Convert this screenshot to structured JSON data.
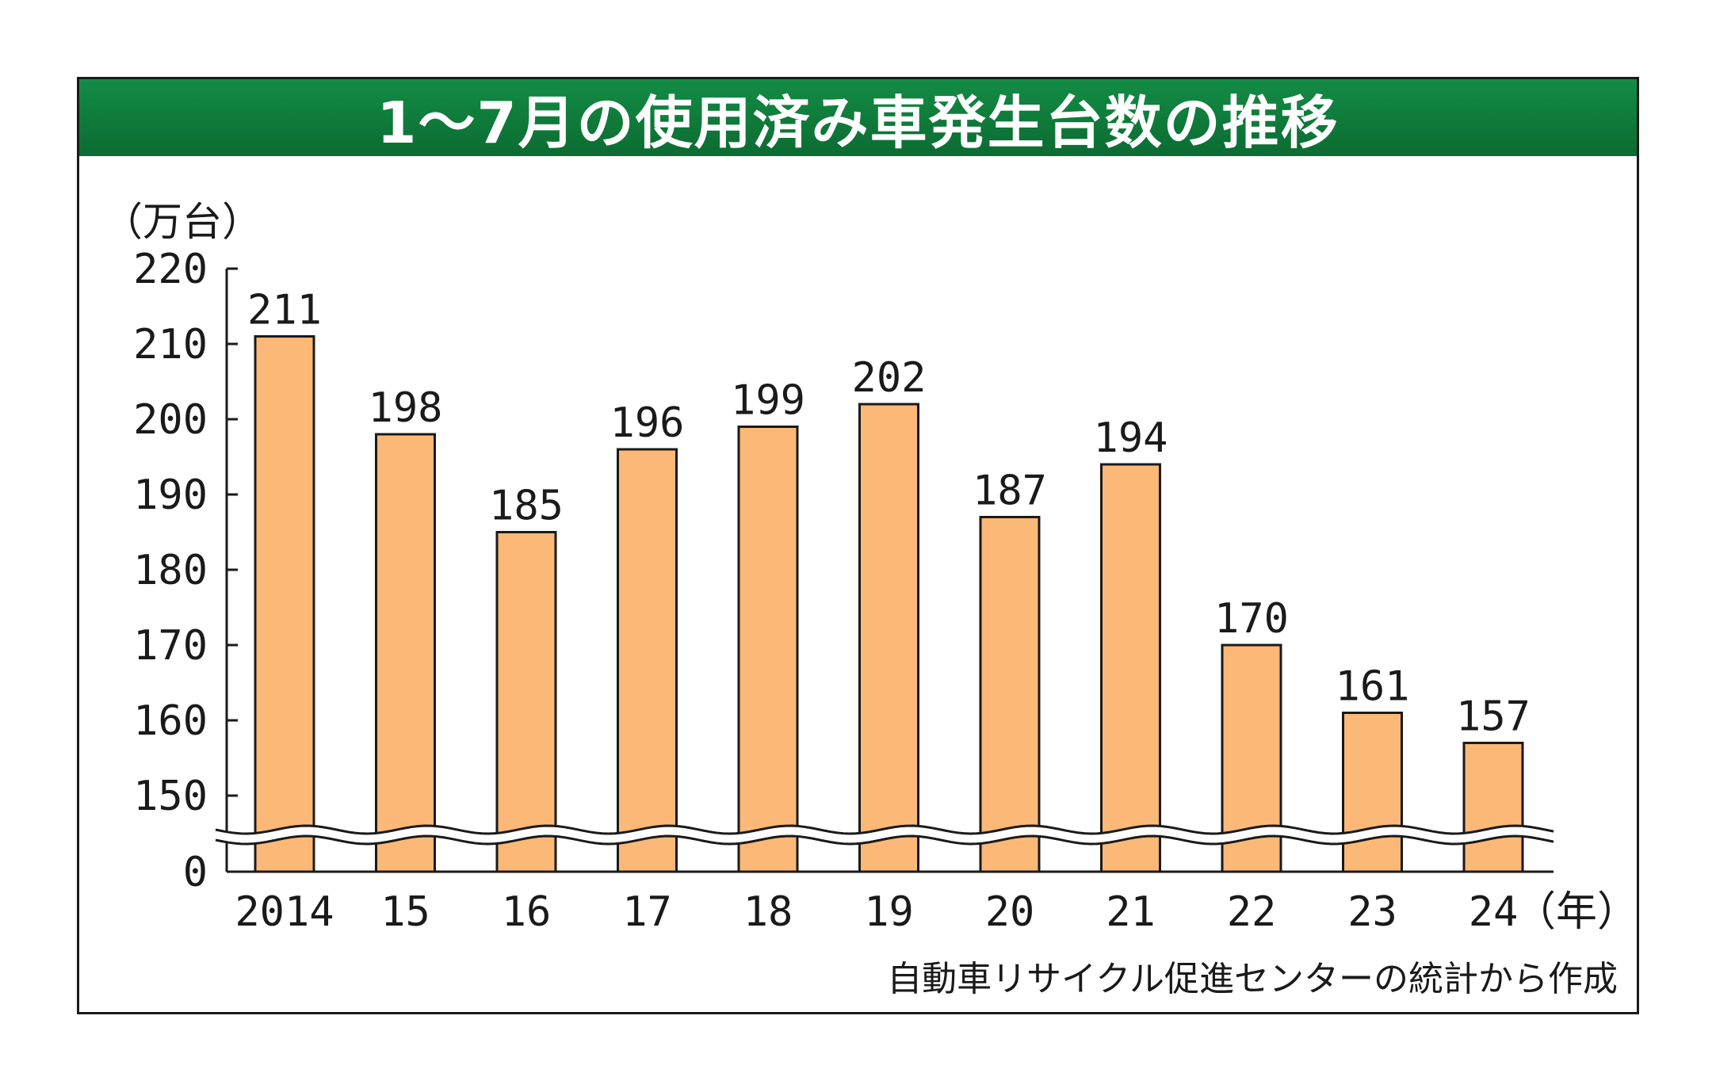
{
  "title": "1～7月の使用済み車発生台数の推移",
  "unit_label": "（万台）",
  "x_unit_label": "（年）",
  "source": "自動車リサイクル促進センターの統計から作成",
  "colors": {
    "bar": "#fbb877",
    "bar_stroke": "#1a1a1a",
    "title_bg": "#0f7a3a",
    "title_text": "#ffffff"
  },
  "chart_data": {
    "type": "bar",
    "title": "1～7月の使用済み車発生台数の推移",
    "categories": [
      "2014",
      "15",
      "16",
      "17",
      "18",
      "19",
      "20",
      "21",
      "22",
      "23",
      "24"
    ],
    "values": [
      211,
      198,
      185,
      196,
      199,
      202,
      187,
      194,
      170,
      161,
      157
    ],
    "ylabel": "（万台）",
    "xlabel": "（年）",
    "yticks": [
      "0",
      "150",
      "160",
      "170",
      "180",
      "190",
      "200",
      "210",
      "220"
    ],
    "ylim": [
      150,
      220
    ],
    "axis_break": "between 0 and 150",
    "grid": false,
    "legend": "none"
  }
}
